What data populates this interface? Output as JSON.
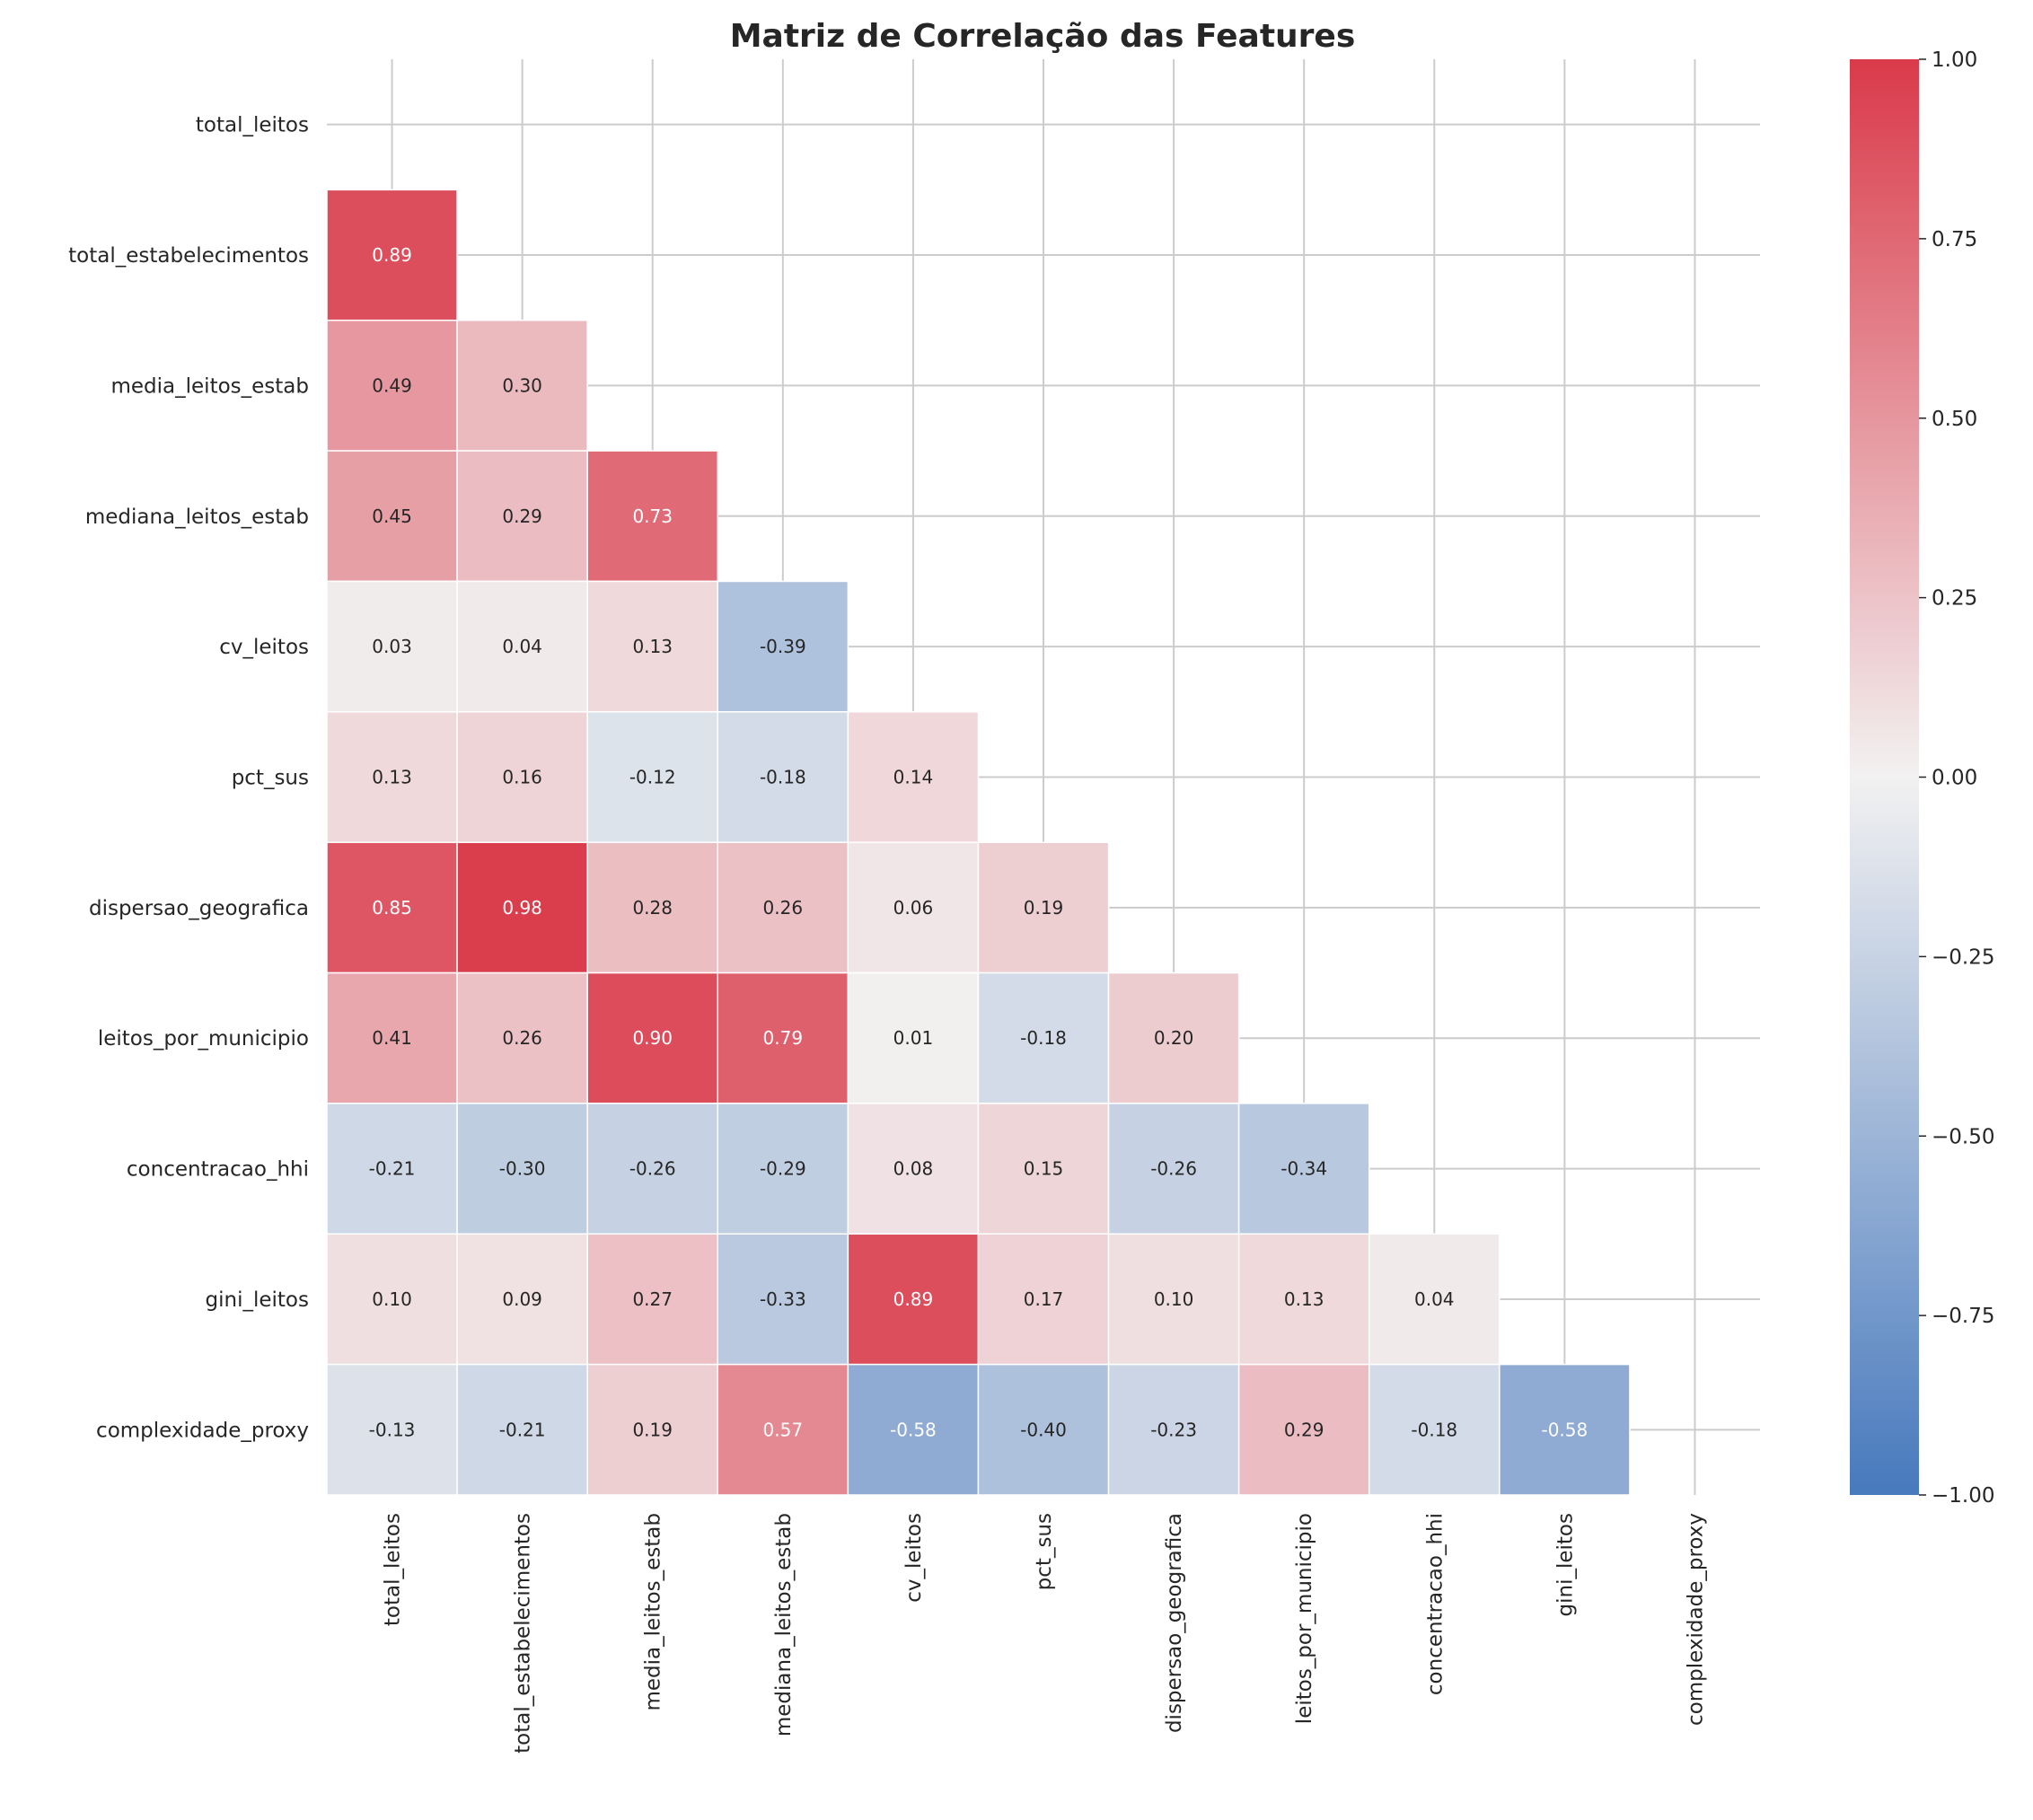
{
  "chart_data": {
    "type": "heatmap",
    "title": "Matriz de Correlação das Features",
    "xlabel": "",
    "ylabel": "",
    "labels": [
      "total_leitos",
      "total_estabelecimentos",
      "media_leitos_estab",
      "mediana_leitos_estab",
      "cv_leitos",
      "pct_sus",
      "dispersao_geografica",
      "leitos_por_municipio",
      "concentracao_hhi",
      "gini_leitos",
      "complexidade_proxy"
    ],
    "mask": "upper-triangle-including-diagonal",
    "values": [
      [],
      [
        0.89
      ],
      [
        0.49,
        0.3
      ],
      [
        0.45,
        0.29,
        0.73
      ],
      [
        0.03,
        0.04,
        0.13,
        -0.39
      ],
      [
        0.13,
        0.16,
        -0.12,
        -0.18,
        0.14
      ],
      [
        0.85,
        0.98,
        0.28,
        0.26,
        0.06,
        0.19
      ],
      [
        0.41,
        0.26,
        0.9,
        0.79,
        0.01,
        -0.18,
        0.2
      ],
      [
        -0.21,
        -0.3,
        -0.26,
        -0.29,
        0.08,
        0.15,
        -0.26,
        -0.34
      ],
      [
        0.1,
        0.09,
        0.27,
        -0.33,
        0.89,
        0.17,
        0.1,
        0.13,
        0.04
      ],
      [
        -0.13,
        -0.21,
        0.19,
        0.57,
        -0.58,
        -0.4,
        -0.23,
        0.29,
        -0.18,
        -0.58
      ]
    ],
    "annotation_format": "0.00",
    "colorbar": {
      "range": [
        -1.0,
        1.0
      ],
      "ticks": [
        1.0,
        0.75,
        0.5,
        0.25,
        0.0,
        -0.25,
        -0.5,
        -0.75,
        -1.0
      ],
      "tick_labels": [
        "1.00",
        "0.75",
        "0.50",
        "0.25",
        "0.00",
        "−0.25",
        "−0.50",
        "−0.75",
        "−1.00"
      ],
      "placement": "right"
    },
    "colormap": {
      "low": "#4779bd",
      "mid": "#f2f1f1",
      "high": "#da3a4a"
    },
    "grid": true
  }
}
